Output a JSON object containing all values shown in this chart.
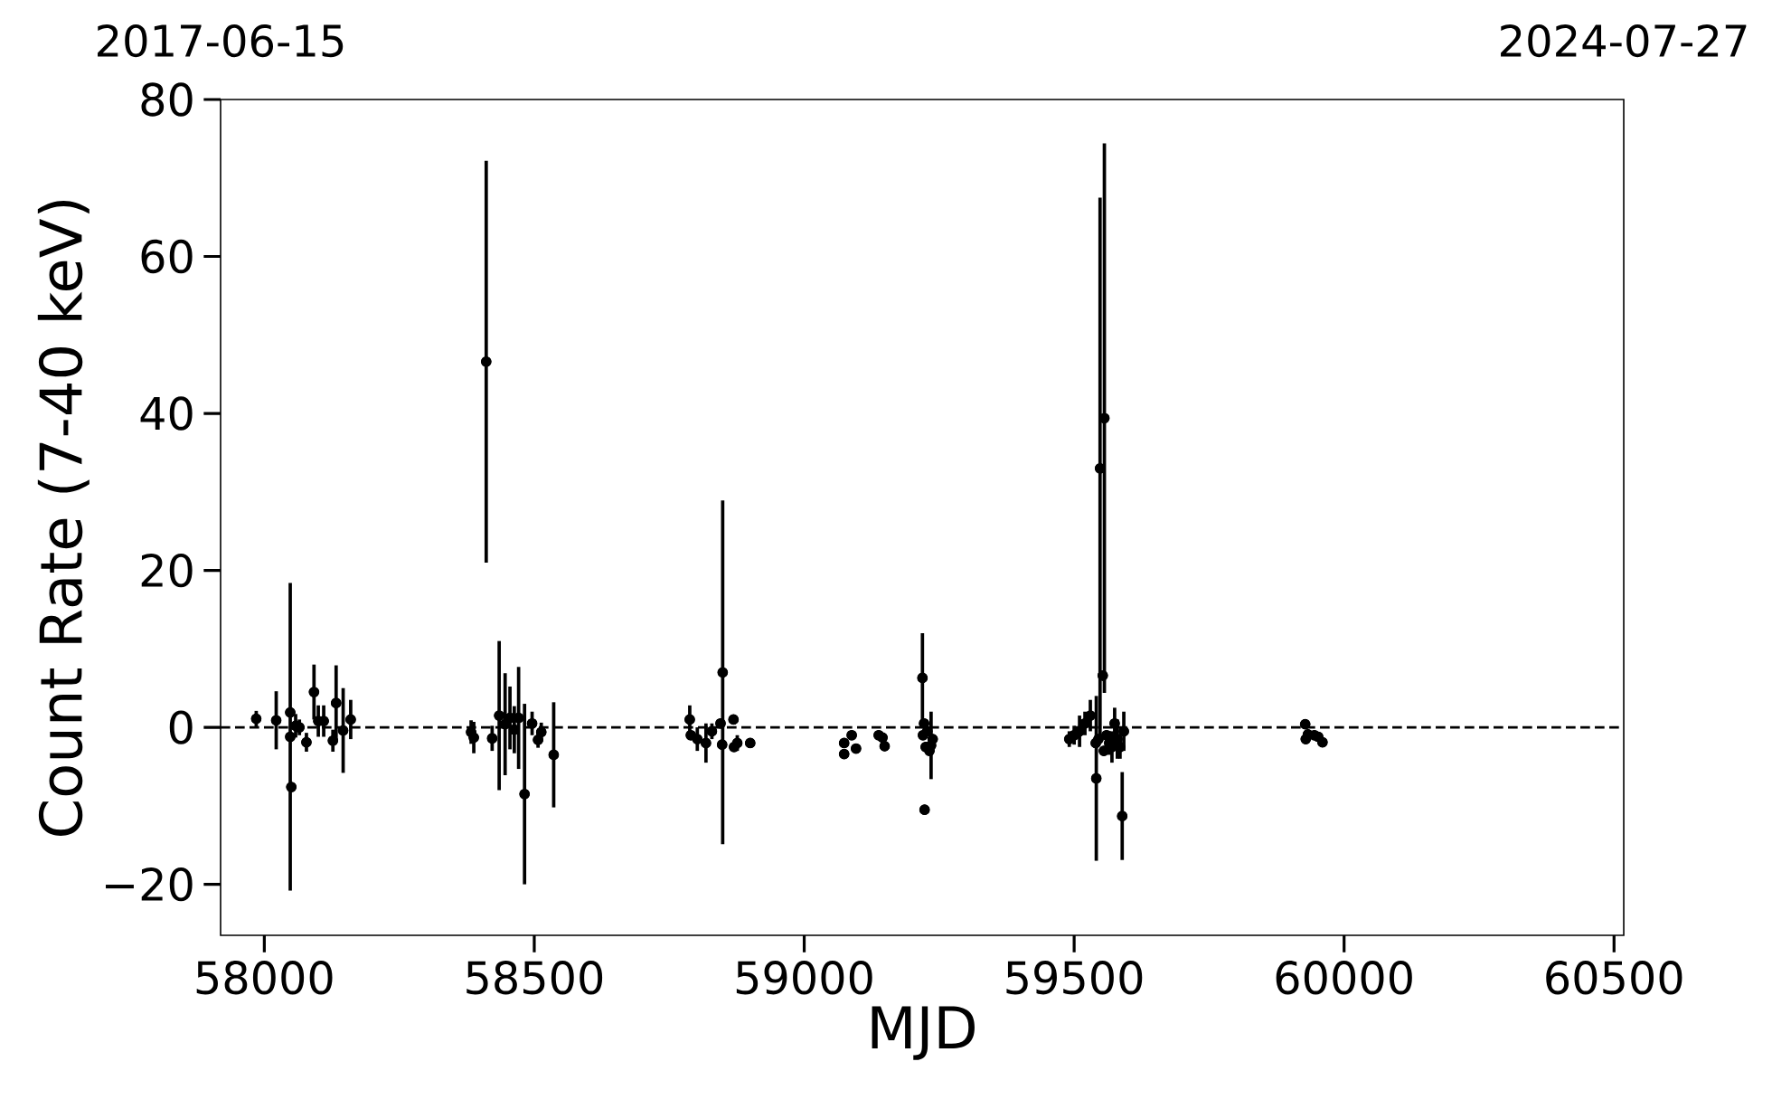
{
  "chart_data": {
    "type": "scatter",
    "xlabel": "MJD",
    "ylabel": "Count Rate (7-40 keV)",
    "xlim": [
      57919,
      60518
    ],
    "xticks": [
      58000,
      58500,
      59000,
      59500,
      60000,
      60500
    ],
    "ylim": [
      -26.5,
      80
    ],
    "yticks": [
      {
        "value": -20,
        "label": "−20"
      },
      0,
      20,
      40,
      60,
      80
    ],
    "x2lim": [
      "2017-06-15",
      "2024-07-27"
    ],
    "x2ticks": [
      "2017-06-15",
      "2024-07-27"
    ],
    "marker": "circle",
    "color": "#000000",
    "grid": false,
    "ref_lines": [
      {
        "axis": "y",
        "value": 0,
        "line_style": "dashed",
        "color": "#000000"
      }
    ],
    "x": [
      57985,
      58022,
      58048,
      58048,
      58050,
      58058,
      58065,
      58078,
      58092,
      58100,
      58110,
      58127,
      58133,
      58146,
      58160,
      58383,
      58388,
      58411,
      58422,
      58435,
      58446,
      58455,
      58463,
      58471,
      58482,
      58496,
      58507,
      58513,
      58536,
      58788,
      58790,
      58802,
      58818,
      58829,
      58845,
      58849,
      58848,
      58869,
      58870,
      58876,
      58900,
      59074,
      59074,
      59088,
      59096,
      59138,
      59145,
      59149,
      59219,
      59223,
      59220,
      59225,
      59228,
      59232,
      59235,
      59222,
      59238,
      59556,
      59548,
      59553,
      59541,
      59589,
      59491,
      59500,
      59510,
      59520,
      59530,
      59540,
      59545,
      59555,
      59560,
      59565,
      59570,
      59575,
      59580,
      59585,
      59592,
      59928,
      59929,
      59933,
      59945,
      59952,
      59960
    ],
    "values": [
      1.1,
      0.9,
      1.9,
      -1.2,
      -7.6,
      0.2,
      0,
      -1.9,
      4.5,
      0.8,
      0.8,
      -1.7,
      3.1,
      -0.4,
      1.0,
      -0.6,
      -1.3,
      46.6,
      -1.4,
      1.5,
      0.4,
      1.2,
      -0.3,
      1.2,
      -8.5,
      0.5,
      -1.6,
      -0.6,
      -3.5,
      1.0,
      -1.0,
      -1.5,
      -2.0,
      -0.5,
      0.5,
      7.0,
      -2.2,
      1.0,
      -2.5,
      -2.0,
      -2.0,
      -2.0,
      -3.4,
      -1.0,
      -2.7,
      -1.0,
      -1.3,
      -2.4,
      6.3,
      -10.5,
      -1.0,
      -2.5,
      -0.5,
      -3.0,
      -2.3,
      0.5,
      -1.5,
      39.4,
      33.0,
      6.6,
      -6.5,
      -11.3,
      -1.5,
      -1.0,
      -0.5,
      0.5,
      1.5,
      -2.0,
      -1.5,
      -3.0,
      -1.0,
      -2.0,
      -2.5,
      0.5,
      -1.5,
      -2.5,
      -0.5,
      0.4,
      -1.5,
      -0.9,
      -1.0,
      -1.2,
      -1.9
    ],
    "errors": [
      1.0,
      3.7,
      null,
      19.6,
      null,
      1.5,
      1.0,
      1.2,
      3.5,
      2.0,
      2.0,
      1.4,
      4.8,
      5.4,
      2.5,
      1.5,
      2.0,
      25.6,
      1.6,
      9.5,
      6.5,
      4.0,
      3.0,
      6.5,
      11.5,
      1.5,
      1.0,
      1.2,
      6.7,
      1.8,
      null,
      1.5,
      2.5,
      1.0,
      null,
      21.9,
      null,
      null,
      null,
      1.0,
      0.5,
      null,
      null,
      0.5,
      0.5,
      0.5,
      0.5,
      0.5,
      5.7,
      null,
      null,
      null,
      null,
      null,
      4.3,
      null,
      null,
      35.0,
      34.5,
      null,
      10.5,
      5.6,
      1.0,
      1.2,
      2.0,
      1.5,
      2.0,
      null,
      null,
      null,
      null,
      1.5,
      2.0,
      2.0,
      2.5,
      1.5,
      2.5,
      0.5,
      0.5,
      0.5,
      0.5,
      0.5,
      0.5
    ]
  }
}
